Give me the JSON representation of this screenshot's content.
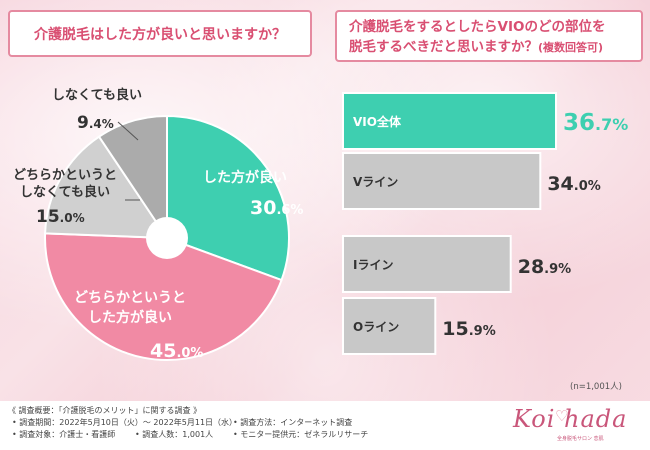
{
  "left_title": "介護脱毛はした方が良いと思いますか？",
  "right_title_line1": "介護脱毛をするとしたらVIOのどの部位を",
  "right_title_line2": "脱毛するべきだと思いますか？",
  "right_title_sub": "(複数回答可)",
  "sample_size": "(n=1,001人)",
  "chart_data": [
    {
      "type": "pie",
      "title": "介護脱毛はした方が良いと思いますか？",
      "slices": [
        {
          "lines": [
            "した方が良い"
          ],
          "value_int": "30",
          "value_dec": ".6%",
          "value": 30.6,
          "color": "#3ecfb0"
        },
        {
          "lines": [
            "どちらかというと",
            "した方が良い"
          ],
          "value_int": "45",
          "value_dec": ".0%",
          "value": 45.0,
          "color": "#f18aa4"
        },
        {
          "lines": [
            "どちらかというと",
            "しなくても良い"
          ],
          "value_int": "15",
          "value_dec": ".0%",
          "value": 15.0,
          "color": "#d0d0d0"
        },
        {
          "lines": [
            "しなくても良い"
          ],
          "value_int": "9",
          "value_dec": ".4%",
          "value": 9.4,
          "color": "#ababab"
        }
      ]
    },
    {
      "type": "bar",
      "orientation": "horizontal",
      "title": "介護脱毛をするとしたらVIOのどの部位を脱毛するべきだと思いますか？(複数回答可)",
      "categories": [
        "VIO全体",
        "Vライン",
        "Iライン",
        "Oライン"
      ],
      "values": [
        36.7,
        34.0,
        28.9,
        15.9
      ],
      "value_int": [
        "36",
        "34",
        "28",
        "15"
      ],
      "value_dec": [
        ".7%",
        ".0%",
        ".9%",
        ".9%"
      ],
      "highlight_color": "#3ecfb0",
      "bar_color": "#c8c8c8",
      "xlim": [
        0,
        36.7
      ]
    }
  ],
  "survey": {
    "heading": "《 調査概要：「介護脱毛のメリット」に関する調査 》",
    "period": "• 調査期間：2022年5月10日（火）～ 2022年5月11日（水）",
    "method": "• 調査方法：インターネット調査",
    "target": "• 調査対象：介護士・看護師",
    "count": "• 調査人数：1,001人",
    "monitor": "• モニター提供元：ゼネラルリサーチ"
  },
  "logo": {
    "brand": "Koi hada",
    "heart": "♡",
    "sub": "全身脱毛サロン 恋肌"
  }
}
